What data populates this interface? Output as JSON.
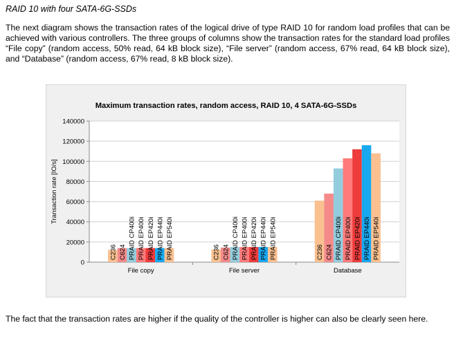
{
  "heading": "RAID 10 with four SATA-6G-SSDs",
  "paragraph": "The next diagram shows the transaction rates of the logical drive of type RAID 10 for random load profiles that can be achieved with various controllers. The three groups of columns show the transaction rates for the standard load profiles “File copy” (random access, 50% read, 64 kB block size), “File server” (random access, 67% read, 64 kB block size), and “Database” (random access, 67% read, 8 kB block size).",
  "footer": "The fact that the transaction rates are higher if the quality of the controller is higher can also be clearly seen here.",
  "chart_data": {
    "type": "bar",
    "title": "Maximum transaction rates, random access, RAID 10, 4 SATA-6G-SSDs",
    "xlabel": "",
    "ylabel": "Transaction rate [IO/s]",
    "ylim": [
      0,
      140000
    ],
    "yticks": [
      "0",
      "20000",
      "40000",
      "60000",
      "80000",
      "100000",
      "120000",
      "140000"
    ],
    "grid": true,
    "legend": "none",
    "categories": [
      "File copy",
      "File server",
      "Database"
    ],
    "series": [
      {
        "name": "C236",
        "color": "#fac090",
        "values": [
          12000,
          12500,
          61000
        ]
      },
      {
        "name": "C624",
        "color": "#f48a8a",
        "values": [
          14000,
          14500,
          68000
        ]
      },
      {
        "name": "PRAID CP400i",
        "color": "#93cddd",
        "values": [
          14000,
          15000,
          93000
        ]
      },
      {
        "name": "PRAID EP400i",
        "color": "#ff7a7a",
        "values": [
          14000,
          15000,
          103000
        ]
      },
      {
        "name": "PRAID EP420i",
        "color": "#ee3b3b",
        "values": [
          14000,
          15000,
          112000
        ]
      },
      {
        "name": "PRAID EP440i",
        "color": "#18a8f0",
        "values": [
          14000,
          15000,
          116000
        ]
      },
      {
        "name": "PRAID EP540i",
        "color": "#fac090",
        "values": [
          14000,
          15000,
          108000
        ]
      }
    ]
  }
}
